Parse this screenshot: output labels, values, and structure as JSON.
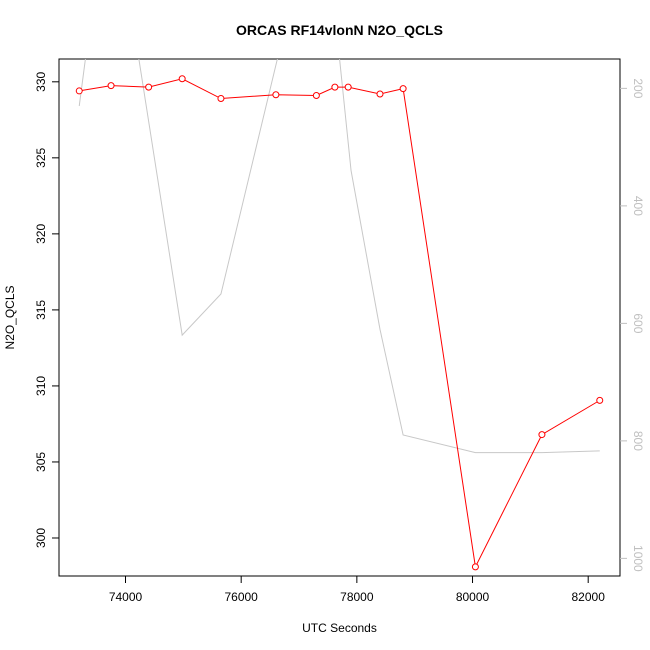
{
  "chart_data": {
    "type": "line",
    "title": "ORCAS RF14vlonN N2O_QCLS",
    "xlabel": "UTC Seconds",
    "ylabel": "N2O_QCLS",
    "xlim": [
      72850,
      82550
    ],
    "ylim": [
      297.5,
      331.5
    ],
    "y2lim": [
      1030,
      150
    ],
    "x_ticks": [
      74000,
      76000,
      78000,
      80000,
      82000
    ],
    "y_ticks": [
      300,
      305,
      310,
      315,
      320,
      325,
      330
    ],
    "y2_ticks": [
      200,
      400,
      600,
      800,
      1000
    ],
    "x_tick_labels": [
      "74000",
      "76000",
      "78000",
      "80000",
      "82000"
    ],
    "y_tick_labels": [
      "300",
      "305",
      "310",
      "315",
      "320",
      "325",
      "330"
    ],
    "y2_tick_labels": [
      "200",
      "400",
      "600",
      "800",
      "1000"
    ],
    "series": [
      {
        "axis": "left",
        "color": "#ff0000",
        "markers": "open-circle",
        "x": [
          73200,
          73750,
          74400,
          74980,
          75650,
          76600,
          77300,
          77620,
          77850,
          78400,
          78800,
          80050,
          81200,
          82200
        ],
        "y": [
          329.4,
          329.75,
          329.65,
          330.2,
          328.9,
          329.15,
          329.1,
          329.65,
          329.65,
          329.2,
          329.55,
          298.1,
          306.8,
          309.05
        ]
      },
      {
        "axis": "right",
        "color": "#c8c8c8",
        "markers": "none",
        "x": [
          73200,
          73500,
          74000,
          74980,
          75650,
          76650,
          77000,
          77550,
          77900,
          78400,
          78800,
          80050,
          81200,
          82200
        ],
        "y": [
          230,
          5,
          5,
          620,
          550,
          140,
          -20,
          5,
          340,
          610,
          790,
          820,
          820,
          817
        ]
      }
    ]
  }
}
